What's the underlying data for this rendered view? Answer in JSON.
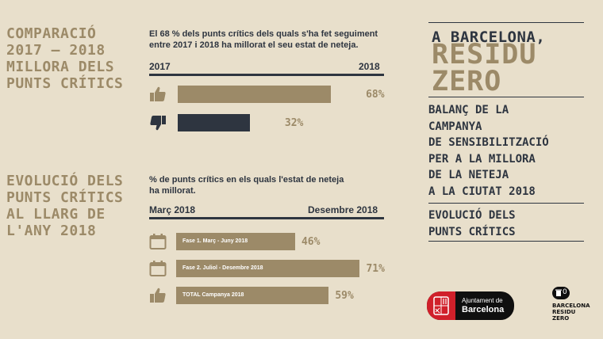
{
  "left": {
    "section1_title": "COMPARACIÓ\n2017 – 2018\nMILLORA DELS\nPUNTS CRÍTICS",
    "section2_title": "EVOLUCIÓ DELS\nPUNTS CRÍTICS\nAL LLARG DE\nL'ANY 2018"
  },
  "chart1": {
    "description_line1": "El 68 % dels punts crítics dels quals s'ha fet seguiment",
    "description_line2": "entre 2017 i 2018 ha millorat el seu estat de neteja.",
    "x_start_label": "2017",
    "x_end_label": "2018"
  },
  "chart2": {
    "description_line1": "% de punts crítics en els quals l'estat de neteja",
    "description_line2": "ha millorat.",
    "x_start_label": "Març 2018",
    "x_end_label": "Desembre 2018"
  },
  "right": {
    "title_line1": "A BARCELONA,",
    "title_line2": "RESIDU\nZERO",
    "subtitle": "BALANÇ DE LA\nCAMPANYA\nDE SENSIBILITZACIÓ\nPER A LA MILLORA\nDE LA NETEJA\nA LA CIUTAT 2018",
    "section_label": "EVOLUCIÓ DELS\nPUNTS CRÍTICS"
  },
  "logos": {
    "ajuntament_line1": "Ajuntament de",
    "ajuntament_line2": "Barcelona",
    "brz_count": "0",
    "brz_line1": "BARCELONA",
    "brz_line2": "RESIDU",
    "brz_line3": "ZERO"
  },
  "colors": {
    "background": "#e8dfcb",
    "gold": "#9c8a68",
    "dark": "#2e3540",
    "red": "#d0202a"
  },
  "chart_data": [
    {
      "type": "bar",
      "orientation": "horizontal",
      "categories": [
        "",
        ""
      ],
      "values": [
        68,
        32
      ],
      "value_labels": [
        "68%",
        "32%"
      ],
      "icons": [
        "thumbs-up-icon",
        "thumbs-down-icon"
      ],
      "colors": [
        "#9c8a68",
        "#2e3540"
      ],
      "xlim": [
        0,
        100
      ]
    },
    {
      "type": "bar",
      "orientation": "horizontal",
      "categories": [
        "Fase 1. Març - Juny 2018",
        "Fase 2. Juliol - Desembre 2018",
        "TOTAL Campanya 2018"
      ],
      "values": [
        46,
        71,
        59
      ],
      "value_labels": [
        "46%",
        "71%",
        "59%"
      ],
      "icons": [
        "calendar-icon",
        "calendar-icon",
        "thumbs-up-icon"
      ],
      "colors": [
        "#9c8a68",
        "#9c8a68",
        "#9c8a68"
      ],
      "xlim": [
        0,
        100
      ]
    }
  ]
}
